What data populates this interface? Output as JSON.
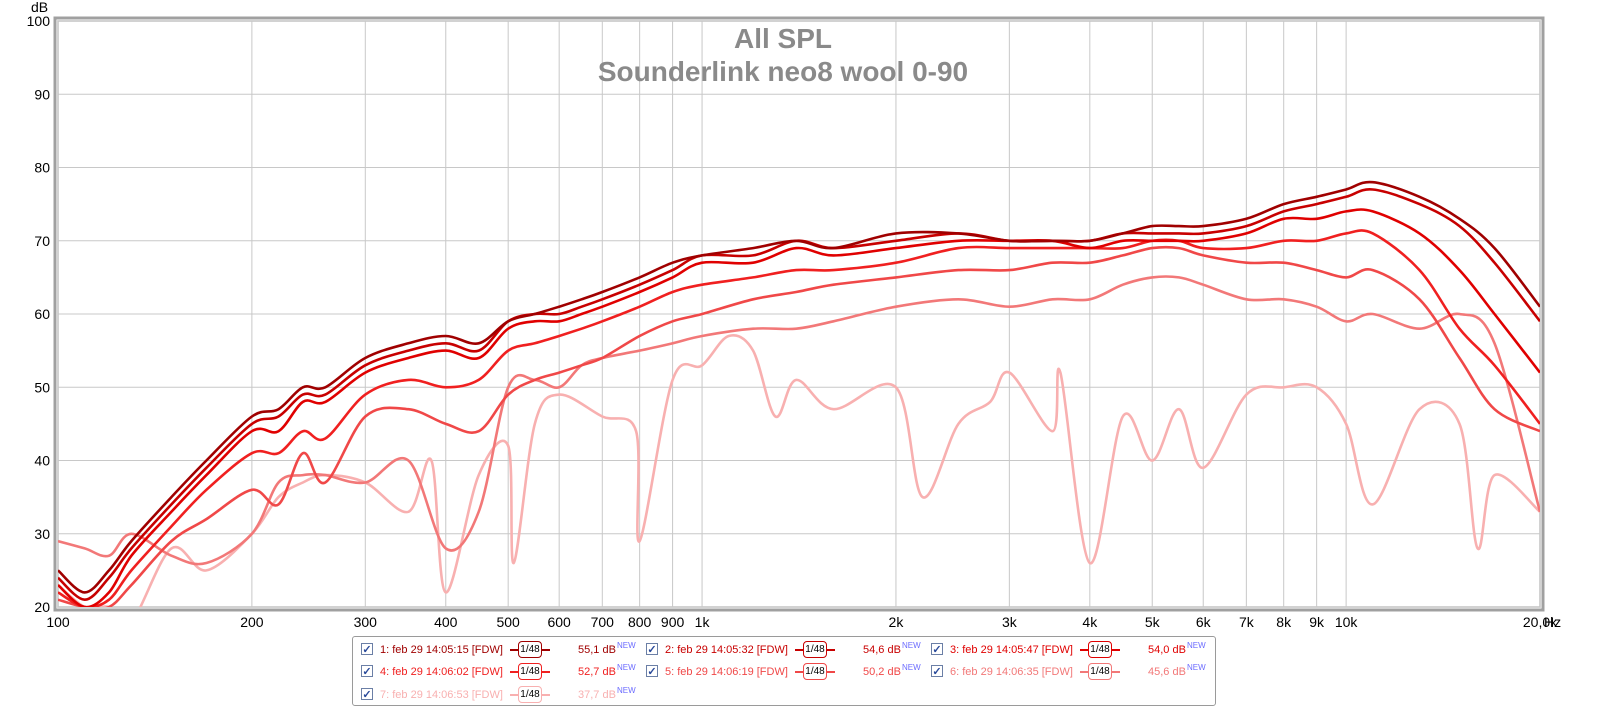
{
  "chart_data": {
    "type": "line",
    "title": "All SPL",
    "subtitle": "Sounderlink neo8 wool 0-90",
    "ylabel": "dB",
    "xlabel": "Hz",
    "x_scale": "log",
    "xlim": [
      100,
      20000
    ],
    "ylim": [
      20,
      100
    ],
    "grid": true,
    "y_ticks": [
      "20",
      "30",
      "40",
      "50",
      "60",
      "70",
      "80",
      "90",
      "100"
    ],
    "x_ticks": [
      {
        "v": 100,
        "label": "100"
      },
      {
        "v": 200,
        "label": "200"
      },
      {
        "v": 300,
        "label": "300"
      },
      {
        "v": 400,
        "label": "400"
      },
      {
        "v": 500,
        "label": "500"
      },
      {
        "v": 600,
        "label": "600"
      },
      {
        "v": 700,
        "label": "700"
      },
      {
        "v": 800,
        "label": "800"
      },
      {
        "v": 900,
        "label": "900"
      },
      {
        "v": 1000,
        "label": "1k"
      },
      {
        "v": 2000,
        "label": "2k"
      },
      {
        "v": 3000,
        "label": "3k"
      },
      {
        "v": 4000,
        "label": "4k"
      },
      {
        "v": 5000,
        "label": "5k"
      },
      {
        "v": 6000,
        "label": "6k"
      },
      {
        "v": 7000,
        "label": "7k"
      },
      {
        "v": 8000,
        "label": "8k"
      },
      {
        "v": 9000,
        "label": "9k"
      },
      {
        "v": 10000,
        "label": "10k"
      },
      {
        "v": 20000,
        "label": "20,0k"
      }
    ],
    "series": [
      {
        "name": "1: feb 29 14:05:15 [FDW]",
        "color": "#a00000",
        "smoothing": "1/48",
        "level": "55,1 dB",
        "x": [
          100,
          110,
          120,
          130,
          150,
          170,
          200,
          220,
          240,
          260,
          300,
          350,
          400,
          450,
          500,
          550,
          600,
          650,
          700,
          800,
          900,
          1000,
          1200,
          1400,
          1600,
          2000,
          2500,
          3000,
          3500,
          4000,
          4500,
          5000,
          5500,
          6000,
          7000,
          8000,
          9000,
          10000,
          11000,
          13000,
          15000,
          17000,
          20000
        ],
        "y": [
          25,
          22,
          25,
          29,
          35,
          40,
          46,
          47,
          50,
          50,
          54,
          56,
          57,
          56,
          59,
          60,
          61,
          62,
          63,
          65,
          67,
          68,
          69,
          70,
          69,
          71,
          71,
          70,
          70,
          70,
          71,
          72,
          72,
          72,
          73,
          75,
          76,
          77,
          78,
          76,
          73,
          69,
          61
        ]
      },
      {
        "name": "2: feb 29 14:05:32 [FDW]",
        "color": "#c80000",
        "smoothing": "1/48",
        "level": "54,6 dB",
        "x": [
          100,
          110,
          120,
          130,
          150,
          170,
          200,
          220,
          240,
          260,
          300,
          350,
          400,
          450,
          500,
          550,
          600,
          650,
          700,
          800,
          900,
          1000,
          1200,
          1400,
          1600,
          2000,
          2500,
          3000,
          3500,
          4000,
          4500,
          5000,
          5500,
          6000,
          7000,
          8000,
          9000,
          10000,
          11000,
          13000,
          15000,
          17000,
          20000
        ],
        "y": [
          24,
          21,
          24,
          28,
          34,
          39,
          45,
          46,
          49,
          49,
          53,
          55,
          56,
          55,
          59,
          60,
          60,
          61,
          62,
          64,
          66,
          68,
          68,
          70,
          69,
          70,
          71,
          70,
          70,
          70,
          71,
          71,
          71,
          71,
          72,
          74,
          75,
          76,
          77,
          75,
          72,
          67,
          59
        ]
      },
      {
        "name": "3: feb 29 14:05:47 [FDW]",
        "color": "#e00000",
        "smoothing": "1/48",
        "level": "54,0 dB",
        "x": [
          100,
          110,
          120,
          130,
          150,
          170,
          200,
          220,
          240,
          260,
          300,
          350,
          400,
          450,
          500,
          550,
          600,
          650,
          700,
          800,
          900,
          1000,
          1200,
          1400,
          1600,
          2000,
          2500,
          3000,
          3500,
          4000,
          4500,
          5000,
          5500,
          6000,
          7000,
          8000,
          9000,
          10000,
          11000,
          13000,
          15000,
          17000,
          20000
        ],
        "y": [
          23,
          20,
          22,
          27,
          33,
          38,
          44,
          44,
          48,
          48,
          52,
          54,
          55,
          54,
          58,
          59,
          59,
          60,
          61,
          63,
          65,
          67,
          67,
          69,
          68,
          69,
          70,
          70,
          70,
          69,
          70,
          70,
          70,
          70,
          71,
          73,
          73,
          74,
          74,
          71,
          66,
          60,
          52
        ]
      },
      {
        "name": "4: feb 29 14:06:02 [FDW]",
        "color": "#f02020",
        "smoothing": "1/48",
        "level": "52,7 dB",
        "x": [
          100,
          110,
          120,
          130,
          150,
          170,
          200,
          220,
          240,
          260,
          300,
          350,
          400,
          450,
          500,
          550,
          600,
          650,
          700,
          800,
          900,
          1000,
          1200,
          1400,
          1600,
          2000,
          2500,
          3000,
          3500,
          4000,
          4500,
          5000,
          5500,
          6000,
          7000,
          8000,
          9000,
          10000,
          11000,
          13000,
          15000,
          17000,
          20000
        ],
        "y": [
          22,
          20,
          21,
          25,
          31,
          36,
          41,
          41,
          44,
          43,
          49,
          51,
          50,
          51,
          55,
          56,
          57,
          58,
          59,
          61,
          63,
          64,
          65,
          66,
          66,
          67,
          69,
          69,
          69,
          69,
          69,
          70,
          70,
          69,
          69,
          70,
          70,
          71,
          71,
          66,
          58,
          53,
          45
        ]
      },
      {
        "name": "5: feb 29 14:06:19 [FDW]",
        "color": "#f04848",
        "smoothing": "1/48",
        "level": "50,2 dB",
        "x": [
          100,
          110,
          120,
          130,
          150,
          170,
          200,
          220,
          240,
          260,
          300,
          350,
          400,
          450,
          500,
          550,
          600,
          650,
          700,
          800,
          900,
          1000,
          1200,
          1400,
          1600,
          2000,
          2500,
          3000,
          3500,
          4000,
          4500,
          5000,
          5500,
          6000,
          7000,
          8000,
          9000,
          10000,
          11000,
          13000,
          15000,
          17000,
          20000
        ],
        "y": [
          21,
          20,
          20,
          23,
          29,
          32,
          36,
          34,
          41,
          37,
          46,
          47,
          45,
          44,
          49,
          51,
          52,
          53,
          54,
          57,
          59,
          60,
          62,
          63,
          64,
          65,
          66,
          66,
          67,
          67,
          68,
          69,
          69,
          68,
          67,
          67,
          66,
          65,
          66,
          62,
          54,
          47,
          44
        ]
      },
      {
        "name": "6: feb 29 14:06:35 [FDW]",
        "color": "#f27878",
        "smoothing": "1/48",
        "level": "45,6 dB",
        "x": [
          100,
          110,
          120,
          130,
          150,
          170,
          200,
          220,
          240,
          260,
          300,
          350,
          400,
          450,
          500,
          550,
          600,
          650,
          700,
          800,
          900,
          1000,
          1200,
          1400,
          1600,
          2000,
          2500,
          3000,
          3500,
          4000,
          4500,
          5000,
          5500,
          6000,
          7000,
          8000,
          9000,
          10000,
          11000,
          13000,
          15000,
          17000,
          20000
        ],
        "y": [
          29,
          28,
          27,
          30,
          27,
          26,
          30,
          37,
          38,
          38,
          37,
          40,
          28,
          33,
          50,
          51,
          50,
          53,
          54,
          55,
          56,
          57,
          58,
          58,
          59,
          61,
          62,
          61,
          62,
          62,
          64,
          65,
          65,
          64,
          62,
          62,
          61,
          59,
          60,
          58,
          60,
          56,
          33
        ]
      },
      {
        "name": "7: feb 29 14:06:53 [FDW]",
        "color": "#f8b0b0",
        "smoothing": "1/48",
        "level": "37,7 dB",
        "x": [
          100,
          110,
          120,
          130,
          150,
          170,
          200,
          220,
          240,
          260,
          300,
          350,
          380,
          400,
          450,
          500,
          510,
          550,
          600,
          700,
          790,
          800,
          900,
          1000,
          1100,
          1200,
          1300,
          1400,
          1600,
          2000,
          2200,
          2500,
          2800,
          3000,
          3500,
          3600,
          4000,
          4500,
          5000,
          5500,
          6000,
          7000,
          8000,
          9000,
          10000,
          11000,
          13000,
          15000,
          16000,
          17000,
          20000
        ],
        "y": [
          23,
          20,
          20,
          18,
          28,
          25,
          30,
          35,
          37,
          38,
          37,
          33,
          40,
          22,
          38,
          42,
          26,
          45,
          49,
          46,
          44,
          29,
          51,
          53,
          57,
          55,
          46,
          51,
          47,
          50,
          35,
          45,
          48,
          52,
          44,
          52,
          26,
          46,
          40,
          47,
          39,
          49,
          50,
          50,
          45,
          34,
          47,
          45,
          28,
          38,
          33
        ]
      }
    ]
  },
  "legend": {
    "items": [
      {
        "label": "1: feb 29 14:05:15 [FDW]",
        "value": "55,1 dB",
        "smooth": "1/48",
        "new": "NEW",
        "check": "✓"
      },
      {
        "label": "2: feb 29 14:05:32 [FDW]",
        "value": "54,6 dB",
        "smooth": "1/48",
        "new": "NEW",
        "check": "✓"
      },
      {
        "label": "3: feb 29 14:05:47 [FDW]",
        "value": "54,0 dB",
        "smooth": "1/48",
        "new": "NEW",
        "check": "✓"
      },
      {
        "label": "4: feb 29 14:06:02 [FDW]",
        "value": "52,7 dB",
        "smooth": "1/48",
        "new": "NEW",
        "check": "✓"
      },
      {
        "label": "5: feb 29 14:06:19 [FDW]",
        "value": "50,2 dB",
        "smooth": "1/48",
        "new": "NEW",
        "check": "✓"
      },
      {
        "label": "6: feb 29 14:06:35 [FDW]",
        "value": "45,6 dB",
        "smooth": "1/48",
        "new": "NEW",
        "check": "✓"
      },
      {
        "label": "7: feb 29 14:06:53 [FDW]",
        "value": "37,7 dB",
        "smooth": "1/48",
        "new": "NEW",
        "check": "✓"
      }
    ]
  }
}
